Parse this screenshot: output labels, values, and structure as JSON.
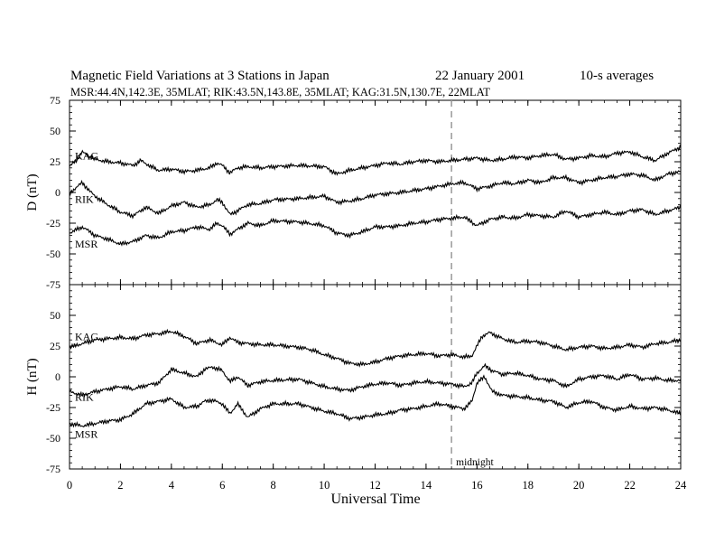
{
  "chart_data": {
    "type": "line",
    "title": "Magnetic Field Variations at 3 Stations in Japan",
    "date": "22 January 2001",
    "note": "10-s averages",
    "subtitle": "MSR:44.4N,142.3E, 35MLAT;   RIK:43.5N,143.8E, 35MLAT;   KAG:31.5N,130.7E, 22MLAT",
    "xlabel": "Universal Time",
    "xlim": [
      0,
      24
    ],
    "xticks": [
      0,
      2,
      4,
      6,
      8,
      10,
      12,
      14,
      16,
      18,
      20,
      22,
      24
    ],
    "annotation": {
      "x": 15,
      "text": "midnight"
    },
    "panels": [
      {
        "id": "D",
        "ylabel": "D (nT)",
        "ylim": [
          -75,
          75
        ],
        "yticks": [
          75,
          50,
          25,
          0,
          -25,
          -50,
          -75
        ],
        "series": [
          {
            "name": "KAG",
            "x": [
              0,
              0.3,
              0.5,
              0.8,
              1,
              1.5,
              2,
              2.5,
              2.8,
              3.2,
              3.5,
              4,
              4.5,
              5,
              5.5,
              5.8,
              6,
              6.3,
              6.6,
              7,
              7.5,
              8,
              9,
              10,
              10.5,
              11,
              11.5,
              12,
              12.5,
              13,
              13.5,
              14,
              14.5,
              15,
              15.5,
              16,
              16.5,
              17,
              17.5,
              18,
              18.5,
              19,
              19.5,
              20,
              20.5,
              21,
              21.5,
              22,
              22.5,
              23,
              23.5,
              24
            ],
            "y": [
              21,
              27,
              33,
              29,
              27,
              25,
              24,
              22,
              26,
              21,
              18,
              19,
              17,
              18,
              20,
              24,
              22,
              16,
              20,
              21,
              20,
              21,
              22,
              21,
              15,
              18,
              20,
              22,
              24,
              23,
              25,
              26,
              25,
              26,
              27,
              28,
              26,
              27,
              29,
              28,
              30,
              31,
              27,
              28,
              30,
              29,
              32,
              33,
              29,
              26,
              32,
              37
            ]
          },
          {
            "name": "RIK",
            "x": [
              0,
              0.2,
              0.5,
              0.8,
              1,
              1.5,
              2,
              2.5,
              3,
              3.5,
              4,
              4.5,
              5,
              5.5,
              5.8,
              6,
              6.3,
              6.5,
              7,
              7.5,
              8,
              9,
              10,
              10.5,
              11,
              11.5,
              12,
              13,
              14,
              14.5,
              15,
              15.5,
              16,
              16.5,
              17,
              17.5,
              18,
              18.5,
              19,
              19.5,
              20,
              20.5,
              21,
              21.5,
              22,
              22.5,
              23,
              23.5,
              24
            ],
            "y": [
              -1,
              3,
              8,
              1,
              -3,
              -10,
              -16,
              -19,
              -12,
              -17,
              -11,
              -8,
              -12,
              -10,
              -6,
              -8,
              -18,
              -16,
              -10,
              -9,
              -6,
              -5,
              -3,
              -8,
              -7,
              -5,
              -2,
              0,
              3,
              5,
              7,
              8,
              3,
              5,
              8,
              7,
              10,
              8,
              12,
              12,
              8,
              10,
              12,
              13,
              15,
              14,
              10,
              15,
              17
            ]
          },
          {
            "name": "MSR",
            "x": [
              0,
              0.3,
              0.5,
              0.8,
              1,
              1.5,
              2,
              2.5,
              3,
              3.5,
              4,
              4.5,
              5,
              5.5,
              5.8,
              6,
              6.3,
              6.6,
              7,
              7.5,
              8,
              9,
              10,
              10.5,
              11,
              11.5,
              12,
              12.5,
              13,
              13.5,
              14,
              14.5,
              15,
              15.5,
              16,
              16.5,
              17,
              17.5,
              18,
              18.5,
              19,
              19.5,
              20,
              20.5,
              21,
              21.5,
              22,
              22.5,
              23,
              23.5,
              24
            ],
            "y": [
              -33,
              -30,
              -28,
              -32,
              -35,
              -38,
              -42,
              -40,
              -35,
              -37,
              -32,
              -31,
              -28,
              -30,
              -25,
              -27,
              -34,
              -30,
              -25,
              -27,
              -23,
              -24,
              -27,
              -33,
              -35,
              -32,
              -28,
              -28,
              -27,
              -25,
              -24,
              -22,
              -21,
              -20,
              -27,
              -22,
              -20,
              -21,
              -18,
              -19,
              -20,
              -15,
              -20,
              -18,
              -16,
              -18,
              -15,
              -14,
              -18,
              -15,
              -12
            ]
          }
        ]
      },
      {
        "id": "H",
        "ylabel": "H (nT)",
        "ylim": [
          -75,
          75
        ],
        "yticks": [
          75,
          50,
          25,
          0,
          -25,
          -50,
          -75
        ],
        "series": [
          {
            "name": "KAG",
            "x": [
              0,
              0.5,
              1,
              1.5,
              2,
              2.5,
              3,
              3.5,
              4,
              4.5,
              5,
              5.5,
              6,
              6.3,
              6.6,
              7,
              7.5,
              8,
              9,
              9.5,
              10,
              10.5,
              11,
              11.5,
              12,
              12.5,
              13,
              13.5,
              14,
              14.5,
              15,
              15.5,
              15.8,
              16,
              16.2,
              16.5,
              17,
              17.5,
              18,
              18.5,
              19,
              19.5,
              20,
              20.5,
              21,
              21.5,
              22,
              22.5,
              23,
              23.5,
              24
            ],
            "y": [
              24,
              27,
              30,
              31,
              32,
              31,
              34,
              35,
              37,
              33,
              27,
              30,
              26,
              32,
              28,
              27,
              26,
              26,
              24,
              22,
              18,
              15,
              11,
              10,
              12,
              15,
              17,
              18,
              19,
              17,
              18,
              16,
              17,
              25,
              33,
              36,
              31,
              28,
              29,
              28,
              25,
              22,
              24,
              25,
              23,
              24,
              26,
              24,
              27,
              28,
              30
            ]
          },
          {
            "name": "RIK",
            "x": [
              0,
              0.5,
              1,
              1.5,
              2,
              2.5,
              3,
              3.5,
              4,
              4.5,
              5,
              5.3,
              5.6,
              6,
              6.3,
              6.6,
              7,
              7.5,
              8,
              9,
              9.5,
              10,
              10.5,
              11,
              11.5,
              12,
              12.5,
              13,
              13.5,
              14,
              14.5,
              15,
              15.5,
              15.8,
              16,
              16.3,
              16.6,
              17,
              17.5,
              18,
              18.5,
              19,
              19.5,
              20,
              20.5,
              21,
              21.5,
              22,
              22.5,
              23,
              23.5,
              24
            ],
            "y": [
              -12,
              -15,
              -12,
              -10,
              -8,
              -10,
              -7,
              -5,
              6,
              3,
              0,
              6,
              8,
              5,
              -4,
              0,
              -7,
              -4,
              -3,
              -2,
              -5,
              -8,
              -10,
              -11,
              -8,
              -6,
              -5,
              -7,
              -5,
              -4,
              -5,
              -6,
              -8,
              -5,
              3,
              9,
              5,
              2,
              3,
              1,
              -2,
              -3,
              -8,
              -2,
              0,
              1,
              -2,
              2,
              -2,
              -1,
              -3,
              -3
            ]
          },
          {
            "name": "MSR",
            "x": [
              0,
              0.5,
              1,
              1.5,
              2,
              2.5,
              3,
              3.5,
              4,
              4.5,
              5,
              5.3,
              5.6,
              6,
              6.3,
              6.6,
              7,
              7.5,
              8,
              9,
              9.5,
              10,
              10.5,
              11,
              11.5,
              12,
              12.5,
              13,
              13.5,
              14,
              14.5,
              15,
              15.5,
              15.8,
              16,
              16.3,
              16.6,
              17,
              17.5,
              18,
              18.5,
              19,
              19.5,
              20,
              20.5,
              21,
              21.5,
              22,
              22.5,
              23,
              23.5,
              24
            ],
            "y": [
              -38,
              -40,
              -38,
              -36,
              -35,
              -30,
              -22,
              -20,
              -18,
              -25,
              -24,
              -20,
              -19,
              -22,
              -30,
              -22,
              -33,
              -26,
              -22,
              -22,
              -25,
              -28,
              -30,
              -34,
              -33,
              -31,
              -30,
              -27,
              -26,
              -24,
              -22,
              -24,
              -26,
              -20,
              -5,
              0,
              -12,
              -15,
              -16,
              -17,
              -19,
              -20,
              -25,
              -21,
              -20,
              -25,
              -27,
              -24,
              -26,
              -25,
              -27,
              -30
            ]
          }
        ]
      }
    ]
  }
}
